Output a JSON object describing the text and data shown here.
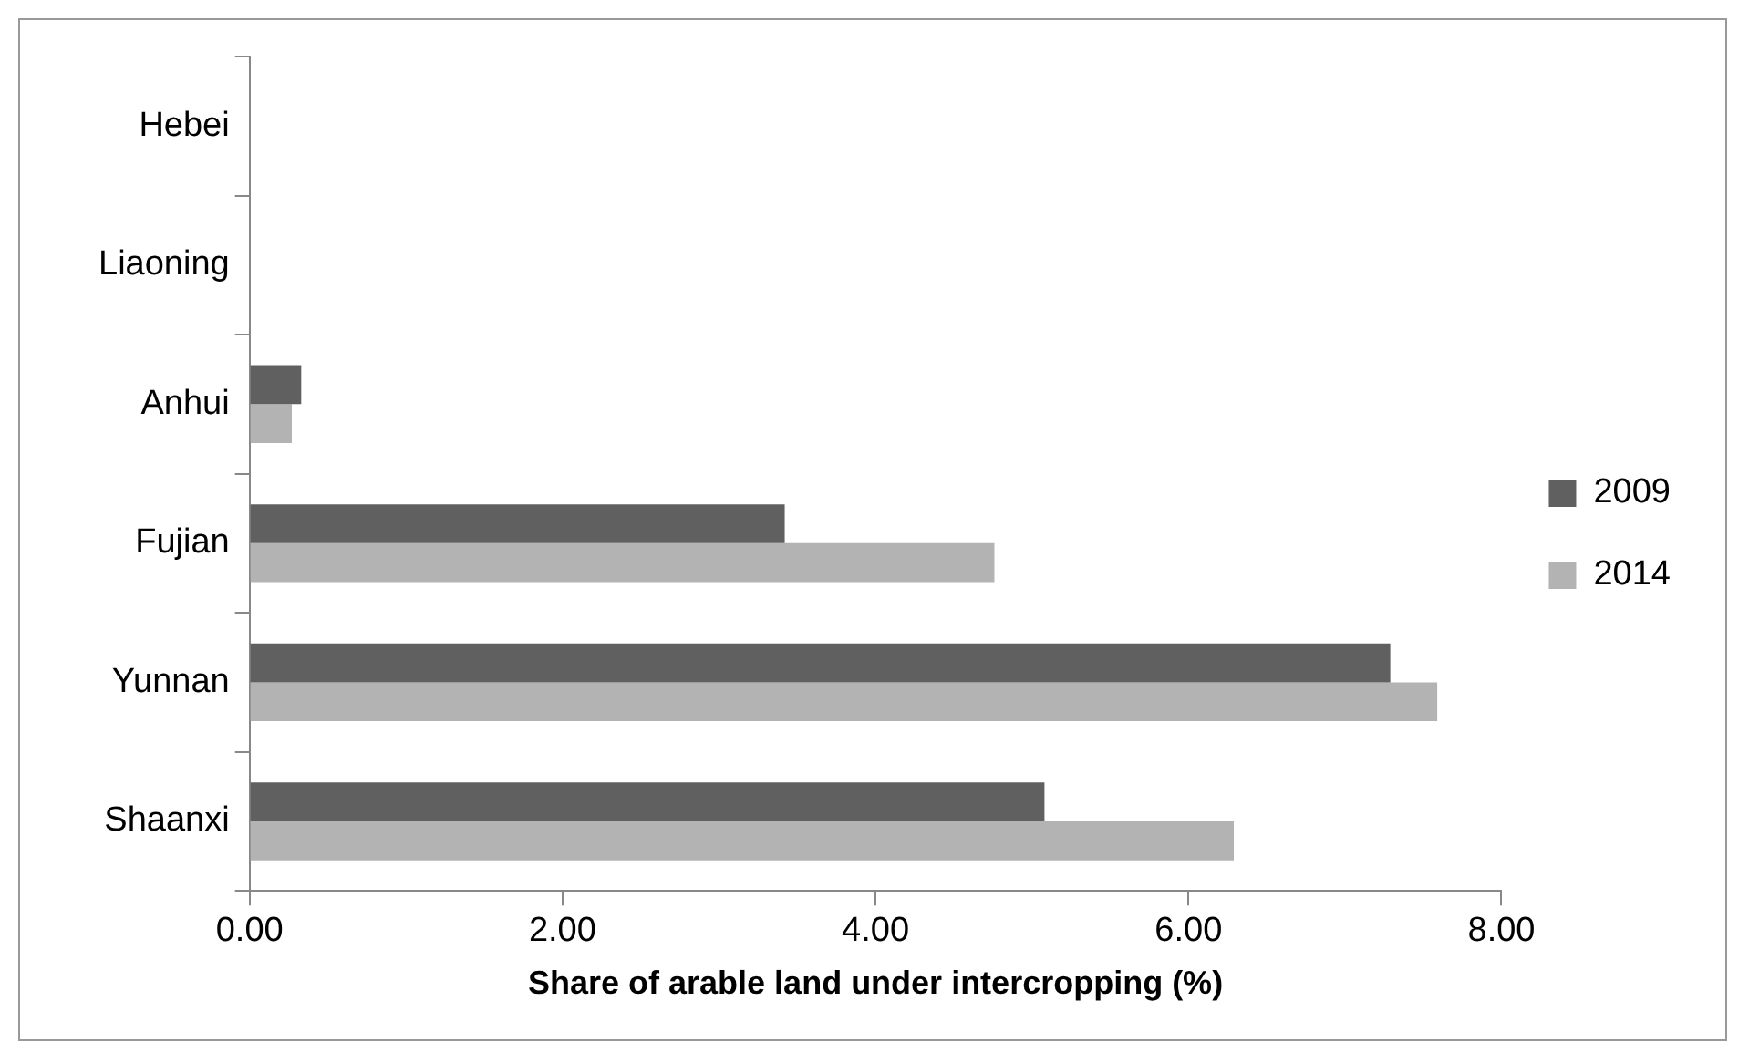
{
  "chart_data": {
    "type": "bar",
    "orientation": "horizontal",
    "xlabel": "Share of arable land under intercropping (%)",
    "categories": [
      "Hebei",
      "Liaoning",
      "Anhui",
      "Fujian",
      "Yunnan",
      "Shaanxi"
    ],
    "series": [
      {
        "name": "2009",
        "color": "#606060",
        "values": [
          0,
          0,
          0.33,
          3.42,
          7.29,
          5.08
        ]
      },
      {
        "name": "2014",
        "color": "#b3b3b3",
        "values": [
          0,
          0,
          0.27,
          4.76,
          7.59,
          6.29
        ]
      }
    ],
    "xlim": [
      0,
      8
    ],
    "xticks": [
      {
        "value": 0,
        "label": "0.00"
      },
      {
        "value": 2,
        "label": "2.00"
      },
      {
        "value": 4,
        "label": "4.00"
      },
      {
        "value": 6,
        "label": "6.00"
      },
      {
        "value": 8,
        "label": "8.00"
      }
    ],
    "grid": false,
    "legend": "right"
  }
}
